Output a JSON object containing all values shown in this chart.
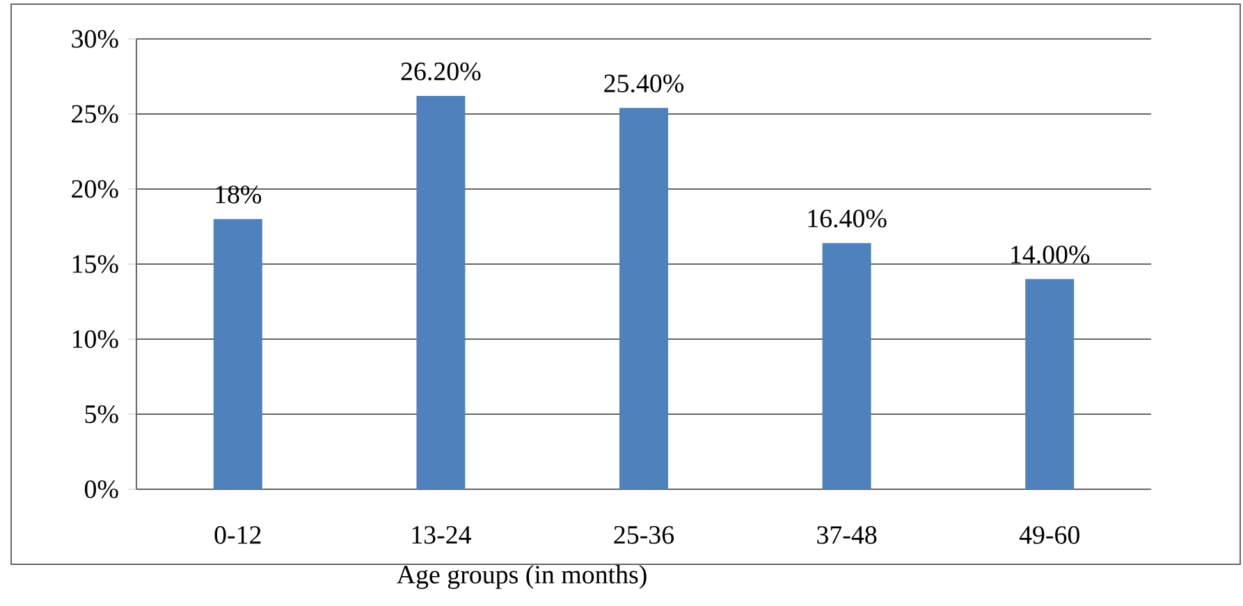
{
  "chart_data": {
    "type": "bar",
    "xlabel": "Age groups (in months)",
    "categories": [
      "0-12",
      "13-24",
      "25-36",
      "37-48",
      "49-60"
    ],
    "values": [
      18,
      26.2,
      25.4,
      16.4,
      14.0
    ],
    "color": "#4f81bd",
    "value_labels": [
      "18%",
      "26.20%",
      "25.40%",
      "16.40%",
      "14.00%"
    ],
    "ylim": [
      0,
      30
    ],
    "yticks": [
      {
        "value": 0,
        "label": "0%"
      },
      {
        "value": 5,
        "label": "5%"
      },
      {
        "value": 10,
        "label": "10%"
      },
      {
        "value": 15,
        "label": "15%"
      },
      {
        "value": 20,
        "label": "20%"
      },
      {
        "value": 25,
        "label": "25%"
      },
      {
        "value": 30,
        "label": "30%"
      }
    ],
    "grid": "y"
  }
}
